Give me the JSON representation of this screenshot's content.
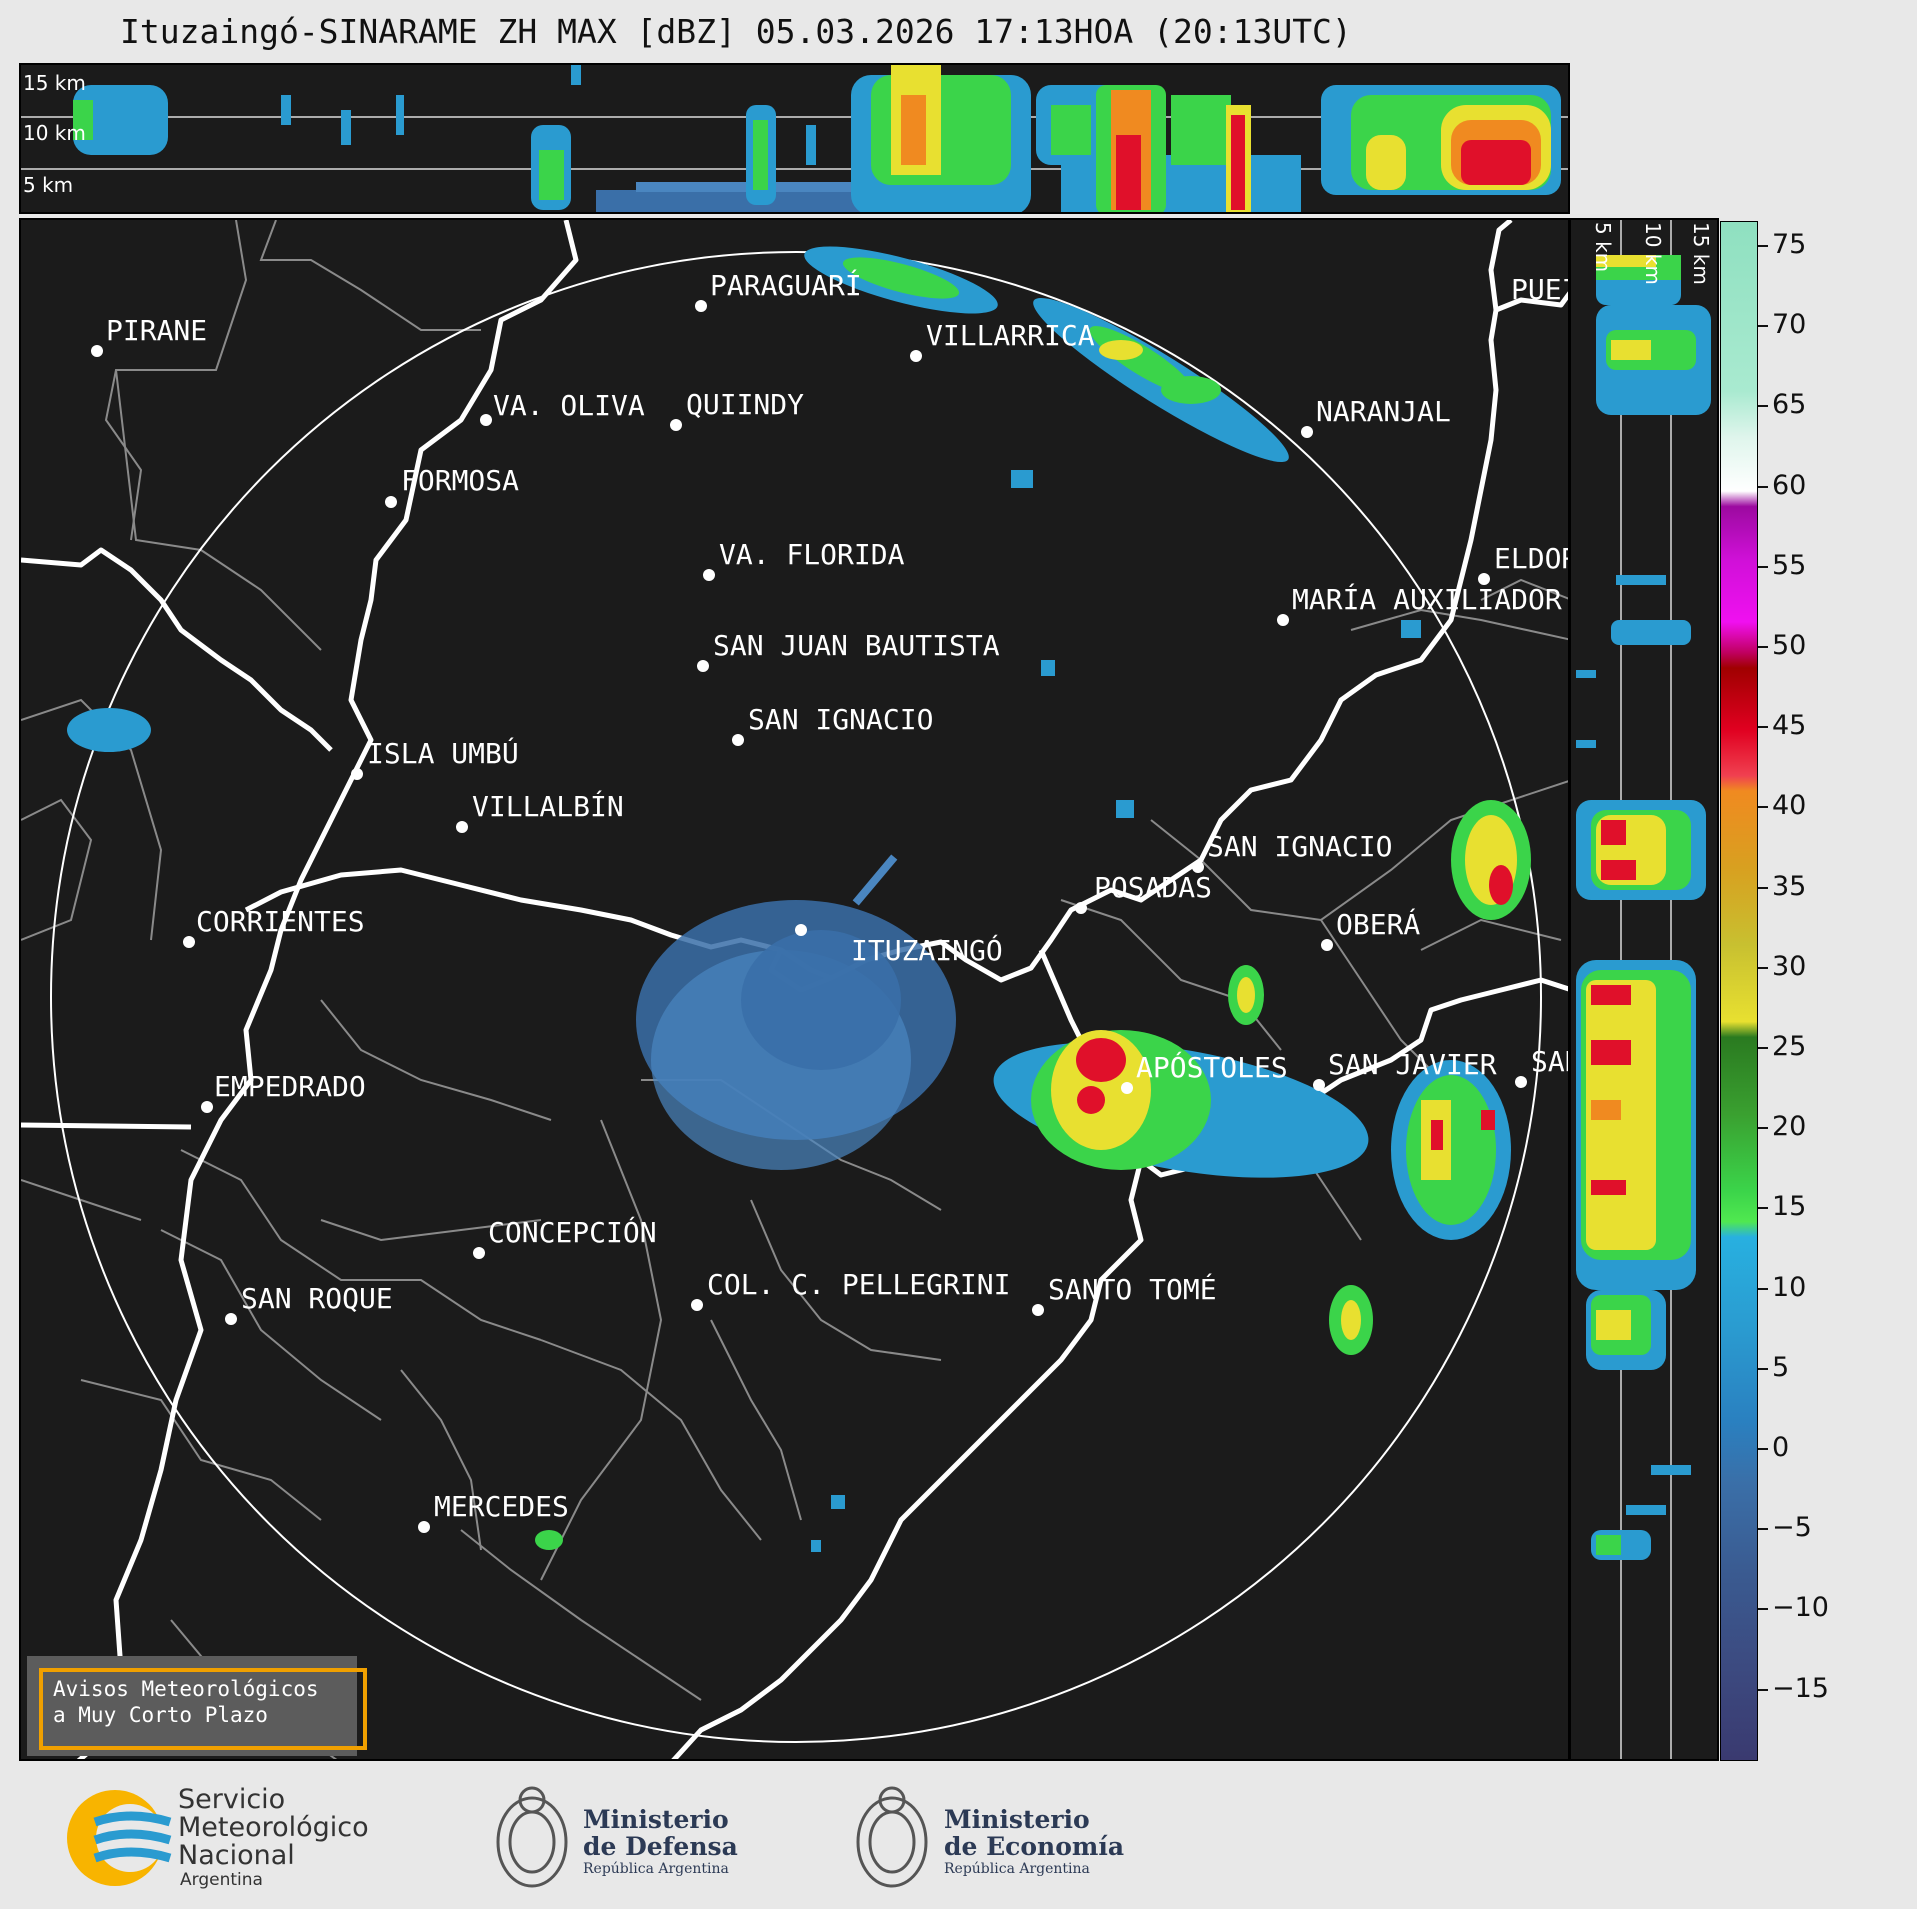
{
  "title": "Ituzaingó-SINARAME ZH MAX [dBZ] 05.03.2026 17:13HOA (20:13UTC)",
  "top_panel": {
    "altitude_labels": [
      "15 km",
      "10 km",
      "5 km"
    ]
  },
  "right_panel": {
    "altitude_labels": [
      "5 km",
      "10 km",
      "15 km"
    ]
  },
  "colorbar": {
    "unit": "dBZ",
    "ticks": [
      "75",
      "70",
      "65",
      "60",
      "55",
      "50",
      "45",
      "40",
      "35",
      "30",
      "25",
      "20",
      "15",
      "10",
      "5",
      "0",
      "−5",
      "−10",
      "−15"
    ],
    "range": [
      -20,
      77
    ]
  },
  "cities": [
    {
      "name": "PARAGUARÍ"
    },
    {
      "name": "PIRANE"
    },
    {
      "name": "VILLARRICA"
    },
    {
      "name": "VA. OLIVA"
    },
    {
      "name": "QUIINDY"
    },
    {
      "name": "NARANJAL"
    },
    {
      "name": "FORMOSA"
    },
    {
      "name": "VA. FLORIDA"
    },
    {
      "name": "ELDOR"
    },
    {
      "name": "MARÍA AUXILIADOR"
    },
    {
      "name": "SAN JUAN BAUTISTA"
    },
    {
      "name": "SAN IGNACIO"
    },
    {
      "name": "ISLA UMBÚ"
    },
    {
      "name": "VILLALBÍN"
    },
    {
      "name": "SAN IGNACIO"
    },
    {
      "name": "POSADAS"
    },
    {
      "name": "CORRIENTES"
    },
    {
      "name": "ITUZAINGÓ"
    },
    {
      "name": "OBERÁ"
    },
    {
      "name": "APÓSTOLES"
    },
    {
      "name": "SAN JAVIER"
    },
    {
      "name": "SAN"
    },
    {
      "name": "EMPEDRADO"
    },
    {
      "name": "CONCEPCIÓN"
    },
    {
      "name": "COL. C. PELLEGRINI"
    },
    {
      "name": "SANTO TOMÉ"
    },
    {
      "name": "SAN ROQUE"
    },
    {
      "name": "MERCEDES"
    },
    {
      "name": "PUEI"
    }
  ],
  "warning": {
    "line1": "Avisos Meteorológicos",
    "line2": "a Muy Corto Plazo"
  },
  "footer": {
    "smn": [
      "Servicio",
      "Meteorológico",
      "Nacional",
      "Argentina"
    ],
    "defensa": [
      "Ministerio",
      "de Defensa",
      "República Argentina"
    ],
    "economia": [
      "Ministerio",
      "de Economía",
      "República Argentina"
    ]
  },
  "colors": {
    "background": "#1b1b1b",
    "range_ring": "#ffffff",
    "rivers": "#ffffff",
    "borders": "#8a8a8a",
    "warning_border": "#f0a000"
  }
}
